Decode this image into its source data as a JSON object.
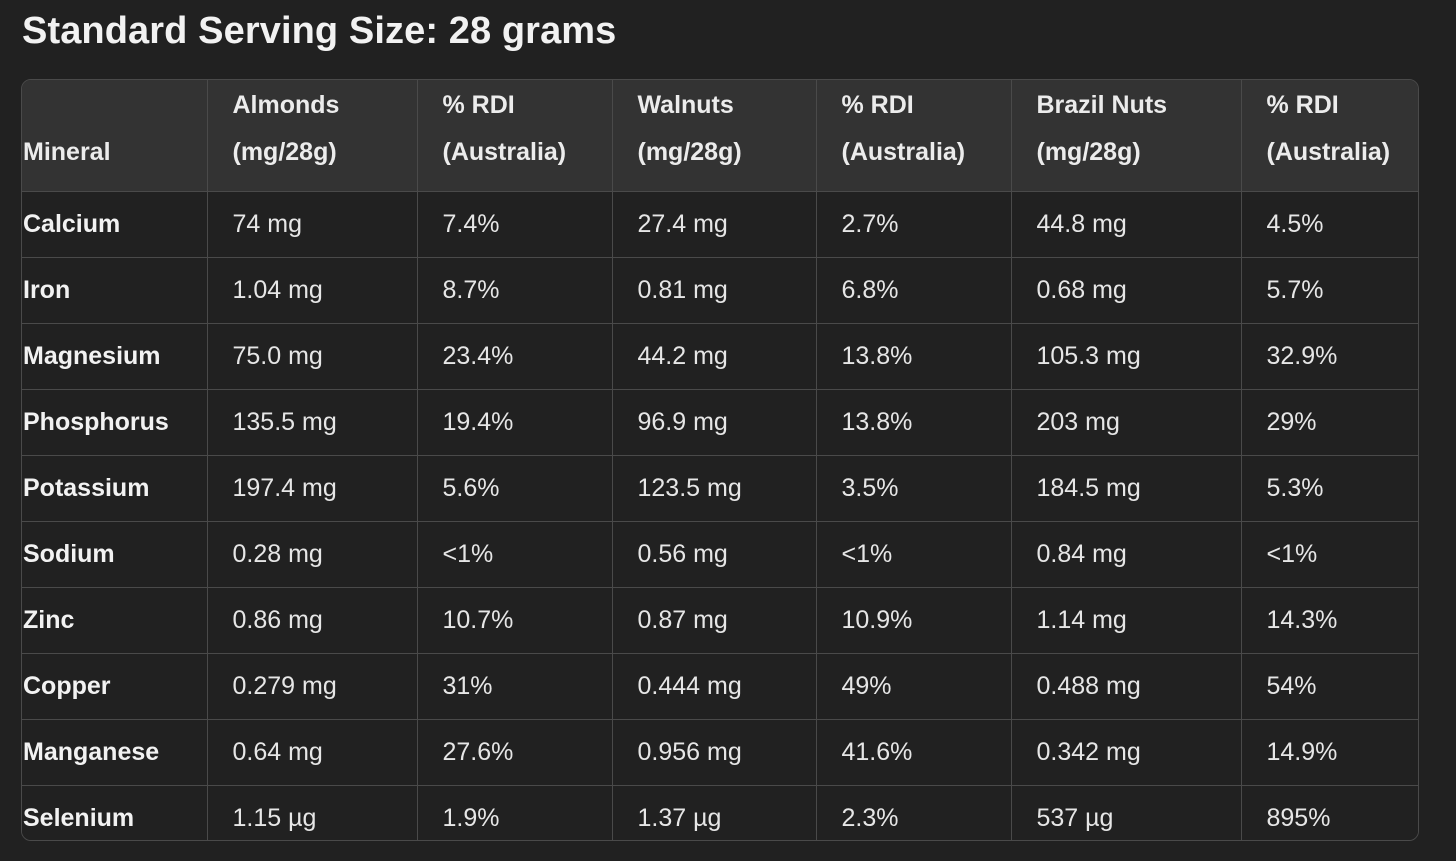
{
  "title": "Standard Serving Size: 28 grams",
  "table": {
    "headers": [
      [
        "",
        "Mineral"
      ],
      [
        "Almonds",
        "(mg/28g)"
      ],
      [
        "% RDI",
        "(Australia)"
      ],
      [
        "Walnuts",
        "(mg/28g)"
      ],
      [
        "% RDI",
        "(Australia)"
      ],
      [
        "Brazil Nuts",
        "(mg/28g)"
      ],
      [
        "% RDI",
        "(Australia)"
      ]
    ],
    "rows": [
      [
        "Calcium",
        "74 mg",
        "7.4%",
        "27.4 mg",
        "2.7%",
        "44.8 mg",
        "4.5%"
      ],
      [
        "Iron",
        "1.04 mg",
        "8.7%",
        "0.81 mg",
        "6.8%",
        "0.68 mg",
        "5.7%"
      ],
      [
        "Magnesium",
        "75.0 mg",
        "23.4%",
        "44.2 mg",
        "13.8%",
        "105.3 mg",
        "32.9%"
      ],
      [
        "Phosphorus",
        "135.5 mg",
        "19.4%",
        "96.9 mg",
        "13.8%",
        "203 mg",
        "29%"
      ],
      [
        "Potassium",
        "197.4 mg",
        "5.6%",
        "123.5 mg",
        "3.5%",
        "184.5 mg",
        "5.3%"
      ],
      [
        "Sodium",
        "0.28 mg",
        "<1%",
        "0.56 mg",
        "<1%",
        "0.84 mg",
        "<1%"
      ],
      [
        "Zinc",
        "0.86 mg",
        "10.7%",
        "0.87 mg",
        "10.9%",
        "1.14 mg",
        "14.3%"
      ],
      [
        "Copper",
        "0.279 mg",
        "31%",
        "0.444 mg",
        "49%",
        "0.488 mg",
        "54%"
      ],
      [
        "Manganese",
        "0.64 mg",
        "27.6%",
        "0.956 mg",
        "41.6%",
        "0.342 mg",
        "14.9%"
      ],
      [
        "Selenium",
        "1.15 µg",
        "1.9%",
        "1.37 µg",
        "2.3%",
        "537 µg",
        "895%"
      ]
    ]
  }
}
